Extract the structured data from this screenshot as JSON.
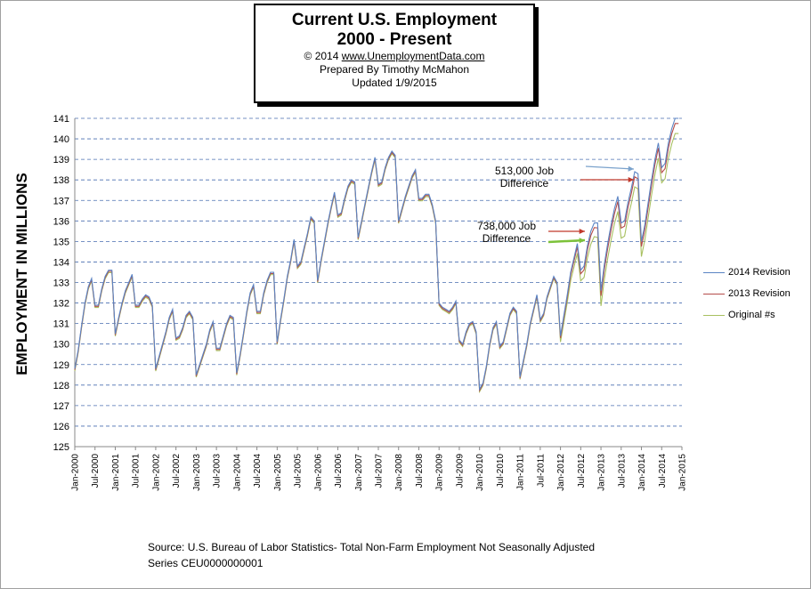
{
  "title_box": {
    "line1": "Current U.S. Employment",
    "line2": "2000 - Present",
    "line3_prefix": "© 2014  ",
    "line3_link": "www.UnemploymentData.com",
    "line4": "Prepared  By Timothy McMahon",
    "line5": "Updated   1/9/2015"
  },
  "source": {
    "line1": "Source: U.S.  Bureau of Labor Statistics-  Total Non-Farm Employment Not Seasonally Adjusted",
    "line2": "Series CEU0000000001"
  },
  "annotations": {
    "a513_line1": "513,000 Job",
    "a513_line2": "Difference",
    "a738_line1": "738,000 Job",
    "a738_line2": "Difference"
  },
  "colors": {
    "rev2014": "#5b84c4",
    "rev2013": "#b54d4a",
    "original": "#a8c060",
    "grid": "#4a6fb0",
    "arrow_blue": "#7aa2cc",
    "arrow_red": "#c0392b",
    "arrow_green": "#7cc23a"
  },
  "chart_data": {
    "type": "line",
    "ylabel": "EMPLOYMENT IN MILLIONS",
    "ylim": [
      125,
      141
    ],
    "yticks": [
      125,
      126,
      127,
      128,
      129,
      130,
      131,
      132,
      133,
      134,
      135,
      136,
      137,
      138,
      139,
      140,
      141
    ],
    "xticks": [
      "Jan-2000",
      "Jul-2000",
      "Jan-2001",
      "Jul-2001",
      "Jan-2002",
      "Jul-2002",
      "Jan-2003",
      "Jul-2003",
      "Jan-2004",
      "Jul-2004",
      "Jan-2005",
      "Jul-2005",
      "Jan-2006",
      "Jul-2006",
      "Jan-2007",
      "Jul-2007",
      "Jan-2008",
      "Jul-2008",
      "Jan-2009",
      "Jul-2009",
      "Jan-2010",
      "Jul-2010",
      "Jan-2011",
      "Jul-2011",
      "Jan-2012",
      "Jul-2012",
      "Jan-2013",
      "Jul-2013",
      "Jan-2014",
      "Jul-2014",
      "Jan-2015"
    ],
    "grid": "horizontal dashed",
    "legend": "right",
    "annual_pattern_2014_revision": [
      [
        128.8,
        129.7,
        130.9,
        132.0,
        132.8,
        133.2,
        131.9,
        131.9,
        132.7,
        133.3,
        133.6,
        133.6
      ],
      [
        130.5,
        131.3,
        132.0,
        132.6,
        133.0,
        133.4,
        131.9,
        131.9,
        132.2,
        132.4,
        132.3,
        131.9
      ],
      [
        128.8,
        129.4,
        130.0,
        130.6,
        131.3,
        131.7,
        130.3,
        130.4,
        130.8,
        131.4,
        131.6,
        131.3
      ],
      [
        128.5,
        129.0,
        129.5,
        130.0,
        130.7,
        131.1,
        129.8,
        129.8,
        130.4,
        131.0,
        131.4,
        131.3
      ],
      [
        128.6,
        129.5,
        130.5,
        131.6,
        132.5,
        132.9,
        131.6,
        131.6,
        132.5,
        133.1,
        133.5,
        133.5
      ],
      [
        130.1,
        131.2,
        132.2,
        133.3,
        134.1,
        135.1,
        133.8,
        134.0,
        134.7,
        135.4,
        136.2,
        136.0
      ],
      [
        133.1,
        134.1,
        135.0,
        135.9,
        136.7,
        137.4,
        136.3,
        136.4,
        137.1,
        137.7,
        138.0,
        137.9
      ],
      [
        135.2,
        136.0,
        136.8,
        137.6,
        138.4,
        139.1,
        137.8,
        137.9,
        138.6,
        139.1,
        139.4,
        139.2
      ],
      [
        136.0,
        136.6,
        137.2,
        137.7,
        138.2,
        138.5,
        137.1,
        137.1,
        137.3,
        137.3,
        136.8,
        136.0
      ],
      [
        132.0,
        131.8,
        131.7,
        131.6,
        131.8,
        132.1,
        130.2,
        130.0,
        130.6,
        131.0,
        131.1,
        130.6
      ],
      [
        127.8,
        128.1,
        128.9,
        130.0,
        130.8,
        131.1,
        129.9,
        130.1,
        130.8,
        131.5,
        131.8,
        131.6
      ],
      [
        128.4,
        129.2,
        130.0,
        131.0,
        131.7,
        132.4,
        131.2,
        131.5,
        132.3,
        132.8,
        133.3,
        133.0
      ],
      [
        130.4,
        131.4,
        132.4,
        133.5,
        134.2,
        134.9,
        133.6,
        133.8,
        134.8,
        135.5,
        135.9,
        135.9
      ],
      [
        132.6,
        133.9,
        134.9,
        135.8,
        136.6,
        137.2,
        135.9,
        136.0,
        136.9,
        137.6,
        138.4,
        138.3
      ],
      [
        135.0,
        135.8,
        136.9,
        138.0,
        139.0,
        139.8,
        138.6,
        138.8,
        139.8,
        140.5,
        141.0,
        141.0
      ]
    ],
    "series": [
      {
        "name": "2014 Revision",
        "offset_2012_on": 0.0
      },
      {
        "name": "2013 Revision",
        "offset_2012_on": -0.25
      },
      {
        "name": "Original #s",
        "offset_2012_on": -0.74
      }
    ]
  }
}
